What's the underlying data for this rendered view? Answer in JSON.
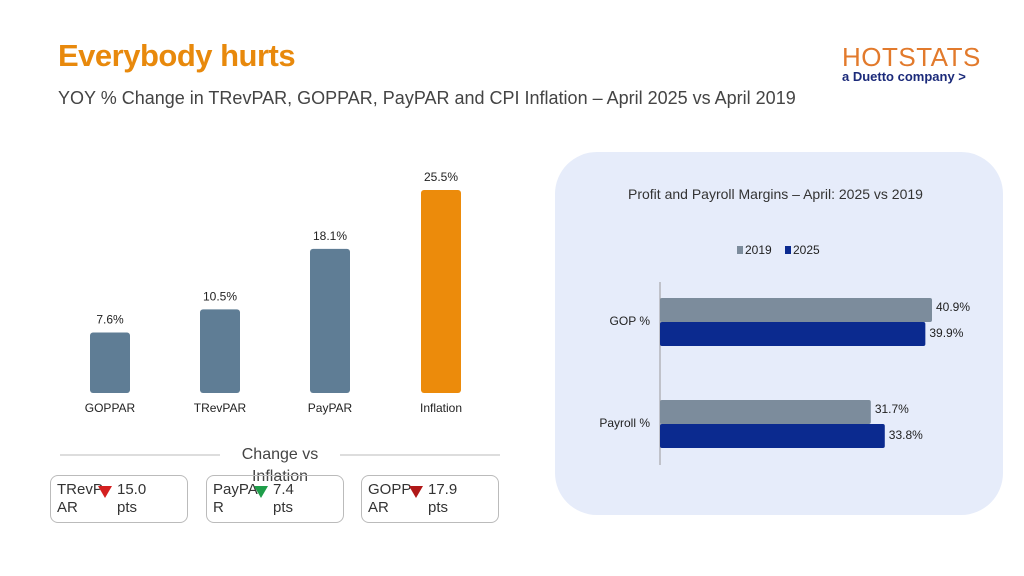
{
  "header": {
    "title": "Everybody hurts",
    "subtitle": "YOY % Change in TRevPAR, GOPPAR, PayPAR and CPI Inflation – April 2025 vs April 2019",
    "logo": "HOTSTATS",
    "logo_tagline": "a Duetto company >"
  },
  "chart_data": [
    {
      "type": "bar",
      "categories": [
        "GOPPAR",
        "TRevPAR",
        "PayPAR",
        "Inflation"
      ],
      "values": [
        7.6,
        10.5,
        18.1,
        25.5
      ],
      "value_labels": [
        "7.6%",
        "10.5%",
        "18.1%",
        "25.5%"
      ],
      "colors": [
        "#5f7d95",
        "#5f7d95",
        "#5f7d95",
        "#ec8b0b"
      ]
    },
    {
      "type": "hbar",
      "title": "Profit and Payroll Margins – April: 2025 vs 2019",
      "categories": [
        "GOP %",
        "Payroll %"
      ],
      "legend": "top",
      "series": [
        {
          "name": "2019",
          "color": "#7c8c9c",
          "values": [
            40.9,
            31.7
          ],
          "value_labels": [
            "40.9%",
            "31.7%"
          ]
        },
        {
          "name": "2025",
          "color": "#0b2a8f",
          "values": [
            39.9,
            33.8
          ],
          "value_labels": [
            "39.9%",
            "33.8%"
          ]
        }
      ]
    }
  ],
  "comparison": {
    "title": "Change vs Inflation",
    "cards": [
      {
        "label": "TRevPAR",
        "change": "15.0 pts",
        "arrow_color": "#d42020"
      },
      {
        "label": "PayPAR",
        "change": "7.4 pts",
        "arrow_color": "#1f9e4a"
      },
      {
        "label": "GOPPAR",
        "change": "17.9 pts",
        "arrow_color": "#b01818"
      }
    ]
  }
}
